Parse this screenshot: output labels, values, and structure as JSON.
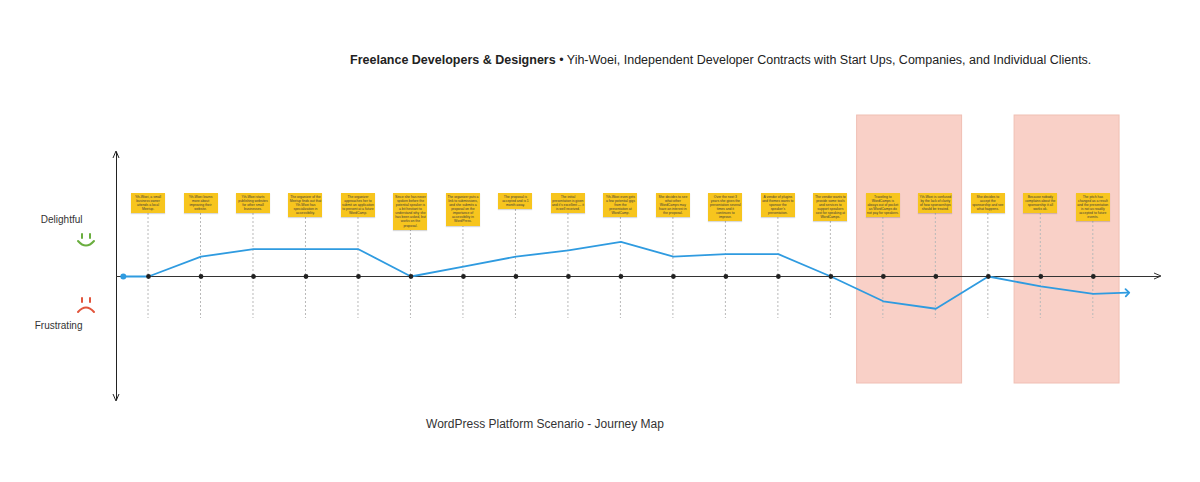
{
  "chart_data": {
    "type": "line",
    "title": "Freelance Developers & Designers",
    "subtitle": "• Yih-Woei, Independent Developer Contracts with Start Ups, Companies, and Individual Clients.",
    "caption": "WordPress Platform Scenario - Journey Map",
    "x": [
      0.52,
      1,
      2,
      3,
      4,
      5,
      6,
      7,
      8,
      9,
      10,
      11,
      12,
      13,
      14,
      15,
      16,
      17,
      18,
      19,
      19.65
    ],
    "values": [
      0,
      0,
      1.6,
      2.2,
      2.2,
      2.2,
      0,
      0.8,
      1.6,
      2.1,
      2.8,
      1.6,
      1.8,
      1.8,
      0,
      -2,
      -2.6,
      0,
      -0.8,
      -1.4,
      -1.3
    ],
    "color": "#2f9be0",
    "marker": "arrow",
    "xlim": [
      0.39,
      20.28
    ],
    "ylim": [
      -10,
      10
    ],
    "yticks": [
      {
        "value": 4.6,
        "label": "Delightful"
      },
      {
        "value": -4,
        "label": "Frustrating"
      }
    ],
    "tick_labels": "y",
    "baseline": 0,
    "annotations": [
      {
        "x": 1,
        "text": "Yih-Woei, a small business owner attends a local Meetup."
      },
      {
        "x": 2,
        "text": "Yih-Woei learns more about improving their website."
      },
      {
        "x": 3,
        "text": "Yih-Woei starts publishing websites for other small businesses."
      },
      {
        "x": 4,
        "text": "The organizer of the Meetup finds out that Yih-Woei has specialization in accessibility."
      },
      {
        "x": 5,
        "text": "The organizer approaches her to submit an application to present at a future WordCamp."
      },
      {
        "x": 6,
        "text": "Since she has never spoken before the potential speaker is a bit hesitant to understand why she has been asked, but works on the proposal."
      },
      {
        "x": 7,
        "text": "The organizer puts a link to submissions, and she submits a proposal on the importance of accessibility in WordPress."
      },
      {
        "x": 8,
        "text": "The proposal is accepted and is 1 month away."
      },
      {
        "x": 9,
        "text": "The initial presentation is given and it's excellent — it is well received."
      },
      {
        "x": 10,
        "text": "Yih-Woei even gets a few potential gigs from the presentation at WordCamp."
      },
      {
        "x": 11,
        "text": "She decides to see what other WordCamps may have an interest in the proposal."
      },
      {
        "x": 12,
        "text": "Over the next 3 years she gives the presentation several times and it continues to improve."
      },
      {
        "x": 13,
        "text": "A vendor of plugins and themes wants to sponsor the speaker's presentation."
      },
      {
        "x": 14,
        "text": "The vendor wants to provide some tools and services to support speakers cost for speaking at WordCamps."
      },
      {
        "x": 15,
        "text": "Traveling to WordCamps is always out of pocket as WordCamps do not pay for speakers."
      },
      {
        "x": 16,
        "text": "Yih-Woei is confused by the lack of clarity of how sponsorships should be treated."
      },
      {
        "x": 17,
        "text": "She decides to accept the sponsorship and see what happens."
      },
      {
        "x": 18,
        "text": "Because nobody complains about the sponsorship it all works ok."
      },
      {
        "x": 19,
        "text": "The pitch has changed as a result and the presentation is not as readily accepted to future events."
      }
    ],
    "highlights": [
      {
        "x1": 14.5,
        "x2": 16.5
      },
      {
        "x1": 17.5,
        "x2": 19.5
      }
    ]
  }
}
